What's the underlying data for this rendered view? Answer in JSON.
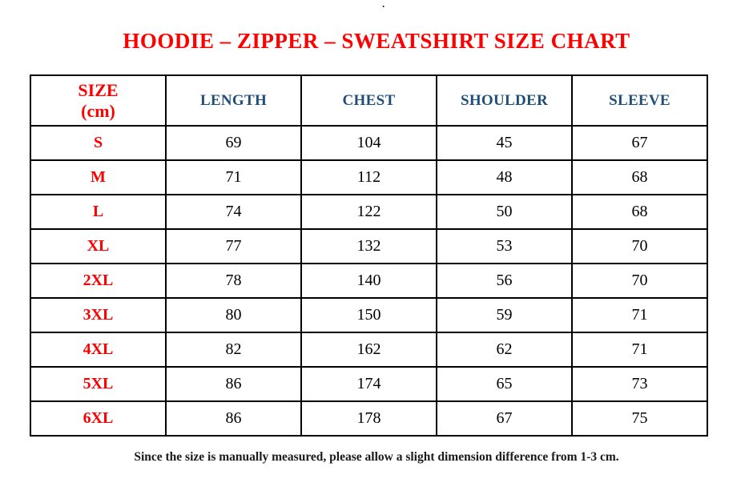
{
  "page": {
    "top_mark": ".",
    "title": "HOODIE – ZIPPER – SWEATSHIRT SIZE CHART",
    "footnote": "Since the size is manually measured, please allow a slight dimension difference from 1-3 cm."
  },
  "colors": {
    "title_red": "#ff0000",
    "size_label_red": "#ff0000",
    "header_blue": "#1f4e79",
    "body_text": "#000000",
    "table_border": "#000000",
    "background": "#ffffff"
  },
  "table": {
    "size_header": {
      "line1": "SIZE",
      "line2": "(cm)"
    },
    "columns": [
      "LENGTH",
      "CHEST",
      "SHOULDER",
      "SLEEVE"
    ],
    "rows": [
      {
        "size": "S",
        "length": "69",
        "chest": "104",
        "shoulder": "45",
        "sleeve": "67"
      },
      {
        "size": "M",
        "length": "71",
        "chest": "112",
        "shoulder": "48",
        "sleeve": "68"
      },
      {
        "size": "L",
        "length": "74",
        "chest": "122",
        "shoulder": "50",
        "sleeve": "68"
      },
      {
        "size": "XL",
        "length": "77",
        "chest": "132",
        "shoulder": "53",
        "sleeve": "70"
      },
      {
        "size": "2XL",
        "length": "78",
        "chest": "140",
        "shoulder": "56",
        "sleeve": "70"
      },
      {
        "size": "3XL",
        "length": "80",
        "chest": "150",
        "shoulder": "59",
        "sleeve": "71"
      },
      {
        "size": "4XL",
        "length": "82",
        "chest": "162",
        "shoulder": "62",
        "sleeve": "71"
      },
      {
        "size": "5XL",
        "length": "86",
        "chest": "174",
        "shoulder": "65",
        "sleeve": "73"
      },
      {
        "size": "6XL",
        "length": "86",
        "chest": "178",
        "shoulder": "67",
        "sleeve": "75"
      }
    ]
  },
  "chart_data": {
    "type": "table",
    "title": "HOODIE – ZIPPER – SWEATSHIRT SIZE CHART",
    "columns": [
      "SIZE (cm)",
      "LENGTH",
      "CHEST",
      "SHOULDER",
      "SLEEVE"
    ],
    "rows": [
      [
        "S",
        69,
        104,
        45,
        67
      ],
      [
        "M",
        71,
        112,
        48,
        68
      ],
      [
        "L",
        74,
        122,
        50,
        68
      ],
      [
        "XL",
        77,
        132,
        53,
        70
      ],
      [
        "2XL",
        78,
        140,
        56,
        70
      ],
      [
        "3XL",
        80,
        150,
        59,
        71
      ],
      [
        "4XL",
        82,
        162,
        62,
        71
      ],
      [
        "5XL",
        86,
        174,
        65,
        73
      ],
      [
        "6XL",
        86,
        178,
        67,
        75
      ]
    ],
    "footnote": "Since the size is manually measured, please allow a slight dimension difference from 1-3 cm."
  }
}
